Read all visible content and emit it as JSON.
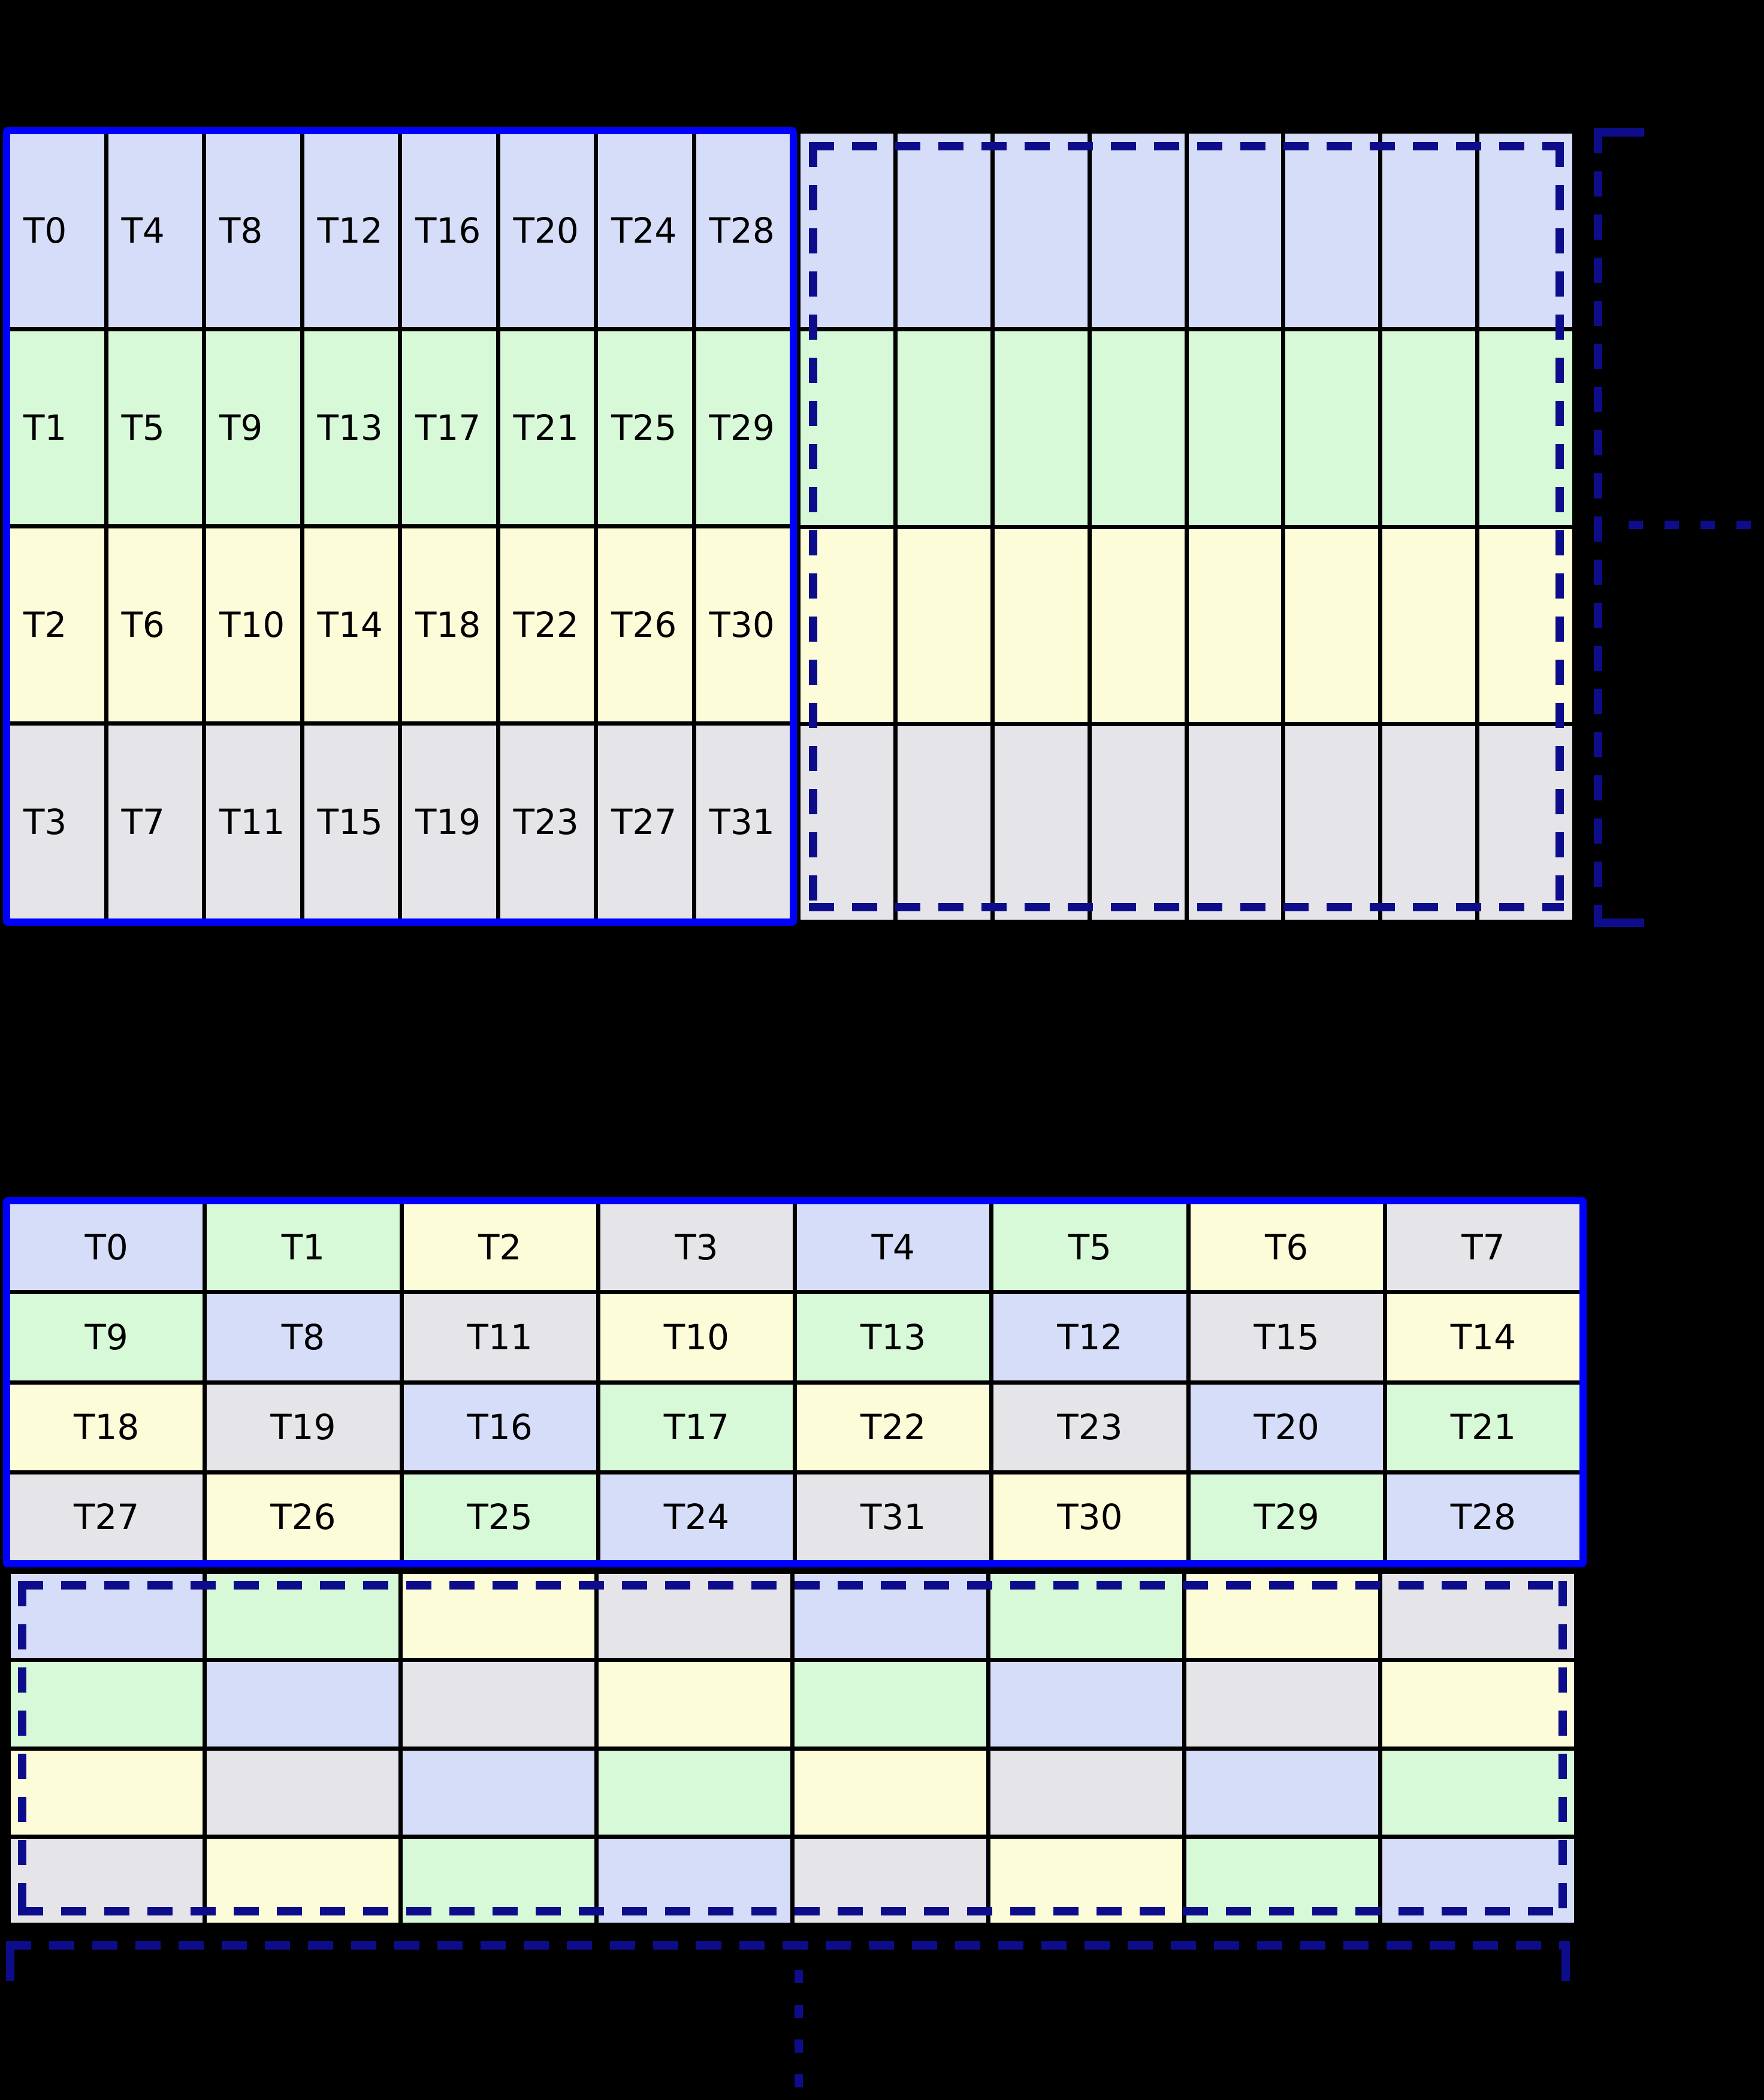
{
  "colors": {
    "background": "#000000",
    "grid_line": "#000000",
    "solid_border": "#0000ff",
    "dashed_border": "#0d0d8c",
    "label_color": "#000000",
    "row_palette": [
      "#d6ddf8",
      "#d7f9d7",
      "#fdfcd8",
      "#e5e5e9"
    ]
  },
  "top_section": {
    "solid_grid": {
      "columns": 8,
      "rows": [
        {
          "color_index": 0,
          "cells": [
            "T0",
            "T4",
            "T8",
            "T12",
            "T16",
            "T20",
            "T24",
            "T28"
          ]
        },
        {
          "color_index": 1,
          "cells": [
            "T1",
            "T5",
            "T9",
            "T13",
            "T17",
            "T21",
            "T25",
            "T29"
          ]
        },
        {
          "color_index": 2,
          "cells": [
            "T2",
            "T6",
            "T10",
            "T14",
            "T18",
            "T22",
            "T26",
            "T30"
          ]
        },
        {
          "color_index": 3,
          "cells": [
            "T3",
            "T7",
            "T11",
            "T15",
            "T19",
            "T23",
            "T27",
            "T31"
          ]
        }
      ]
    },
    "dashed_grid": {
      "columns": 8,
      "row_color_indices": [
        0,
        1,
        2,
        3
      ]
    },
    "continuation": {
      "direction": "right"
    }
  },
  "bottom_section": {
    "solid_grid": {
      "columns": 8,
      "rows": [
        {
          "cells": [
            {
              "label": "T0",
              "color_index": 0
            },
            {
              "label": "T1",
              "color_index": 1
            },
            {
              "label": "T2",
              "color_index": 2
            },
            {
              "label": "T3",
              "color_index": 3
            },
            {
              "label": "T4",
              "color_index": 0
            },
            {
              "label": "T5",
              "color_index": 1
            },
            {
              "label": "T6",
              "color_index": 2
            },
            {
              "label": "T7",
              "color_index": 3
            }
          ]
        },
        {
          "cells": [
            {
              "label": "T9",
              "color_index": 1
            },
            {
              "label": "T8",
              "color_index": 0
            },
            {
              "label": "T11",
              "color_index": 3
            },
            {
              "label": "T10",
              "color_index": 2
            },
            {
              "label": "T13",
              "color_index": 1
            },
            {
              "label": "T12",
              "color_index": 0
            },
            {
              "label": "T15",
              "color_index": 3
            },
            {
              "label": "T14",
              "color_index": 2
            }
          ]
        },
        {
          "cells": [
            {
              "label": "T18",
              "color_index": 2
            },
            {
              "label": "T19",
              "color_index": 3
            },
            {
              "label": "T16",
              "color_index": 0
            },
            {
              "label": "T17",
              "color_index": 1
            },
            {
              "label": "T22",
              "color_index": 2
            },
            {
              "label": "T23",
              "color_index": 3
            },
            {
              "label": "T20",
              "color_index": 0
            },
            {
              "label": "T21",
              "color_index": 1
            }
          ]
        },
        {
          "cells": [
            {
              "label": "T27",
              "color_index": 3
            },
            {
              "label": "T26",
              "color_index": 2
            },
            {
              "label": "T25",
              "color_index": 1
            },
            {
              "label": "T24",
              "color_index": 0
            },
            {
              "label": "T31",
              "color_index": 3
            },
            {
              "label": "T30",
              "color_index": 2
            },
            {
              "label": "T29",
              "color_index": 1
            },
            {
              "label": "T28",
              "color_index": 0
            }
          ]
        }
      ]
    },
    "dashed_grid": {
      "row_color_indices": [
        [
          0,
          1,
          2,
          3,
          0,
          1,
          2,
          3
        ],
        [
          1,
          0,
          3,
          2,
          1,
          0,
          3,
          2
        ],
        [
          2,
          3,
          0,
          1,
          2,
          3,
          0,
          1
        ],
        [
          3,
          2,
          1,
          0,
          3,
          2,
          1,
          0
        ]
      ]
    },
    "continuation": {
      "direction": "down"
    }
  }
}
